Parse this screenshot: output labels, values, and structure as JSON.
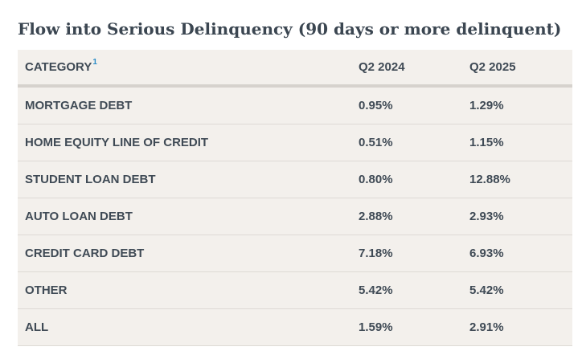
{
  "chart_data": {
    "type": "table",
    "title": "Flow into Serious Delinquency (90 days or more delinquent)",
    "columns": [
      "CATEGORY",
      "Q2 2024",
      "Q2 2025"
    ],
    "header_footnote": "1",
    "rows": [
      {
        "category": "MORTGAGE DEBT",
        "q2_2024": "0.95%",
        "q2_2025": "1.29%"
      },
      {
        "category": "HOME EQUITY LINE OF CREDIT",
        "q2_2024": "0.51%",
        "q2_2025": "1.15%"
      },
      {
        "category": "STUDENT LOAN DEBT",
        "q2_2024": "0.80%",
        "q2_2025": "12.88%"
      },
      {
        "category": "AUTO LOAN DEBT",
        "q2_2024": "2.88%",
        "q2_2025": "2.93%"
      },
      {
        "category": "CREDIT CARD DEBT",
        "q2_2024": "7.18%",
        "q2_2025": "6.93%"
      },
      {
        "category": "OTHER",
        "q2_2024": "5.42%",
        "q2_2025": "5.42%"
      },
      {
        "category": "ALL",
        "q2_2024": "1.59%",
        "q2_2025": "2.91%"
      }
    ]
  },
  "colors": {
    "title": "#3b4651",
    "text": "#3f4a55",
    "table_bg": "#f3f0ec",
    "footnote": "#2a8cc7"
  }
}
